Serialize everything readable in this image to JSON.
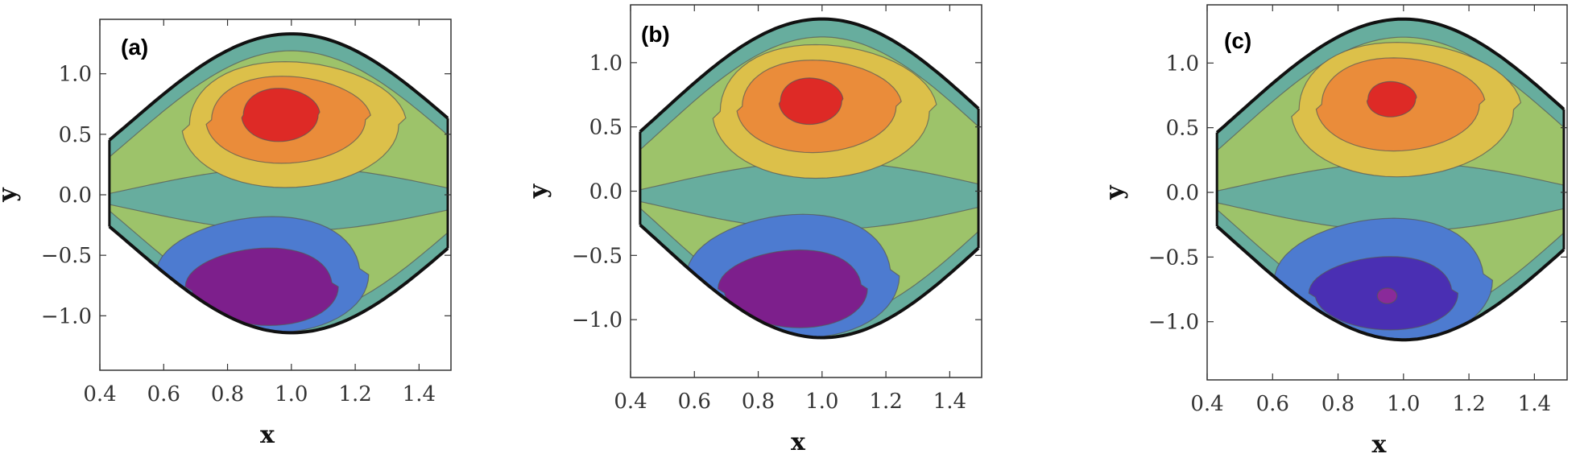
{
  "chart_data": [
    {
      "type": "contour",
      "panel_label": "(a)",
      "xlabel": "x",
      "ylabel": "y",
      "xlim": [
        0.4,
        1.5
      ],
      "ylim": [
        -1.45,
        1.45
      ],
      "xticks": [
        "0.4",
        "0.6",
        "0.8",
        "1.0",
        "1.2",
        "1.4"
      ],
      "yticks": [
        "−1.0",
        "−0.5",
        "0.0",
        "0.5",
        "1.0"
      ],
      "upper_center": [
        0.96,
        0.66
      ],
      "lower_center": [
        0.92,
        -0.76
      ],
      "amplitude": 0.72,
      "wall_mean_upper": 0.61,
      "wall_mean_lower": -0.42,
      "core_scale": 1.0,
      "lower_core_color": "#7d1f8c"
    },
    {
      "type": "contour",
      "panel_label": "(b)",
      "xlabel": "x",
      "ylabel": "y",
      "xlim": [
        0.4,
        1.5
      ],
      "ylim": [
        -1.45,
        1.45
      ],
      "xticks": [
        "0.4",
        "0.6",
        "0.8",
        "1.0",
        "1.2",
        "1.4"
      ],
      "yticks": [
        "−1.0",
        "−0.5",
        "0.0",
        "0.5",
        "1.0"
      ],
      "upper_center": [
        0.96,
        0.7
      ],
      "lower_center": [
        0.92,
        -0.76
      ],
      "amplitude": 0.72,
      "wall_mean_upper": 0.62,
      "wall_mean_lower": -0.42,
      "core_scale": 0.82,
      "lower_core_color": "#7d1f8c"
    },
    {
      "type": "contour",
      "panel_label": "(c)",
      "xlabel": "x",
      "ylabel": "y",
      "xlim": [
        0.4,
        1.5
      ],
      "ylim": [
        -1.45,
        1.45
      ],
      "xticks": [
        "0.4",
        "0.6",
        "0.8",
        "1.0",
        "1.2",
        "1.4"
      ],
      "yticks": [
        "−1.0",
        "−0.5",
        "0.0",
        "0.5",
        "1.0"
      ],
      "upper_center": [
        0.96,
        0.72
      ],
      "lower_center": [
        0.95,
        -0.78
      ],
      "amplitude": 0.72,
      "wall_mean_upper": 0.62,
      "wall_mean_lower": -0.42,
      "core_scale": 0.62,
      "lower_core_color": "#4a2fb3",
      "lower_extra_core_color": "#8a2a9a"
    }
  ],
  "palette": {
    "outer_band": "#67ad9e",
    "neutral_band": "#9dc36a",
    "upper_levels": [
      "#dcc04a",
      "#ea8c3a",
      "#de2a26"
    ],
    "lower_levels": [
      "#4d7bd0",
      "#7d1f8c"
    ],
    "wall_color": "#111111",
    "contour_line_color": "#555555"
  }
}
